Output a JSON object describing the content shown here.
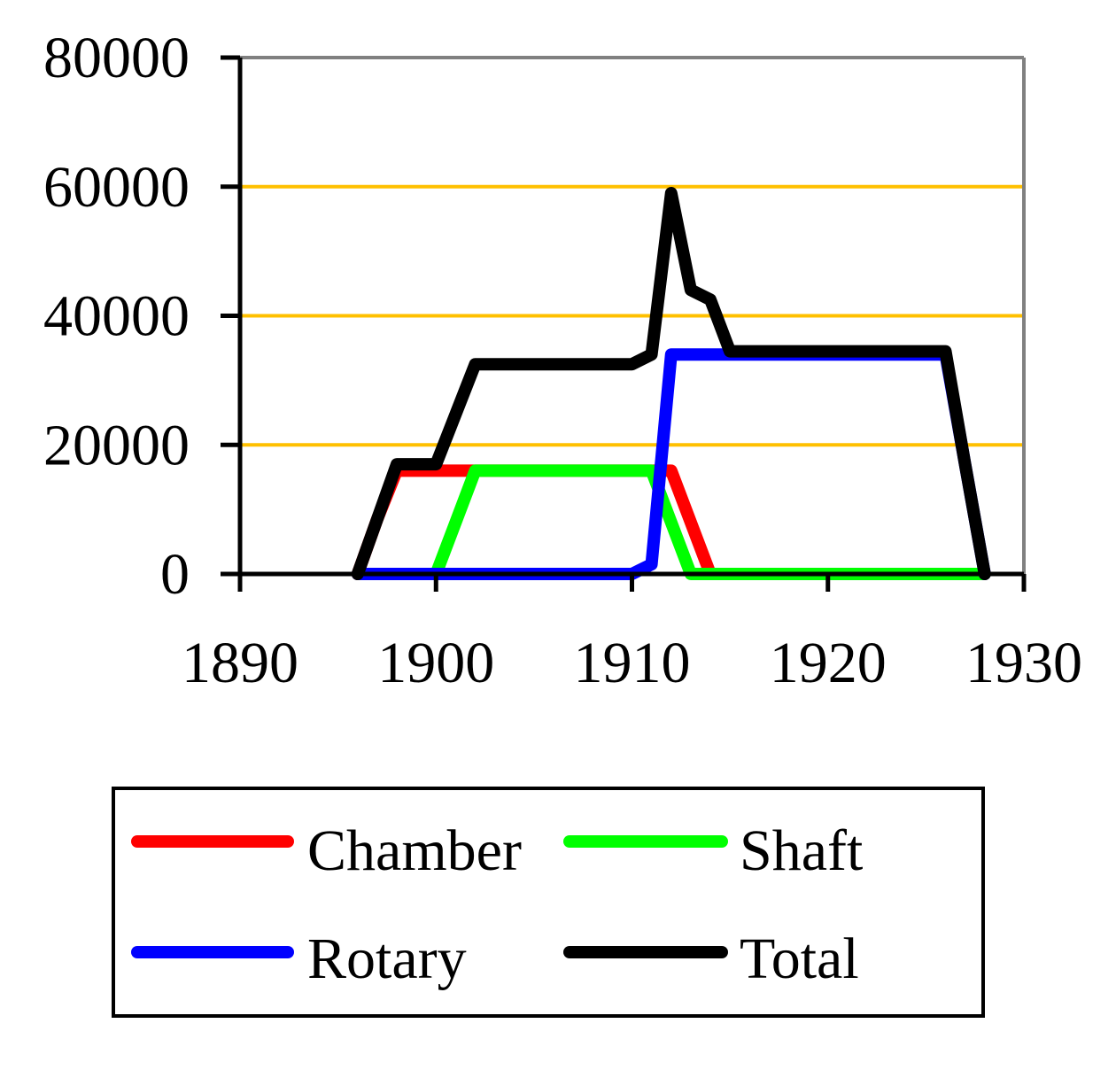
{
  "chart_data": {
    "type": "line",
    "title": "",
    "xlabel": "",
    "ylabel": "",
    "xlim": [
      1890,
      1930
    ],
    "ylim": [
      0,
      80000
    ],
    "x_ticks": [
      1890,
      1900,
      1910,
      1920,
      1930
    ],
    "x_tick_labels": [
      "1890",
      "1900",
      "1910",
      "1920",
      "1930"
    ],
    "y_ticks": [
      0,
      20000,
      40000,
      60000,
      80000
    ],
    "y_tick_labels": [
      "0",
      "20000",
      "40000",
      "60000",
      "80000"
    ],
    "grid": "horizontal",
    "grid_color": "#ffc000",
    "legend_position": "bottom",
    "series": [
      {
        "name": "Chamber",
        "color": "#ff0000",
        "points": [
          [
            1896,
            0
          ],
          [
            1897,
            8500
          ],
          [
            1898,
            16000
          ],
          [
            1912,
            16000
          ],
          [
            1914,
            0
          ],
          [
            1928,
            0
          ]
        ]
      },
      {
        "name": "Shaft",
        "color": "#00ff00",
        "points": [
          [
            1900,
            0
          ],
          [
            1902,
            16000
          ],
          [
            1911,
            16000
          ],
          [
            1913,
            0
          ],
          [
            1928,
            0
          ]
        ]
      },
      {
        "name": "Rotary",
        "color": "#0000ff",
        "points": [
          [
            1896,
            0
          ],
          [
            1910,
            0
          ],
          [
            1911,
            1500
          ],
          [
            1912,
            34000
          ],
          [
            1926,
            34000
          ],
          [
            1927,
            17000
          ],
          [
            1928,
            0
          ]
        ]
      },
      {
        "name": "Total",
        "color": "#000000",
        "points": [
          [
            1896,
            0
          ],
          [
            1897,
            8500
          ],
          [
            1898,
            17000
          ],
          [
            1900,
            17000
          ],
          [
            1902,
            32500
          ],
          [
            1910,
            32500
          ],
          [
            1911,
            34000
          ],
          [
            1912,
            59000
          ],
          [
            1913,
            44000
          ],
          [
            1914,
            42500
          ],
          [
            1915,
            34500
          ],
          [
            1926,
            34500
          ],
          [
            1927,
            17000
          ],
          [
            1928,
            0
          ]
        ]
      }
    ]
  }
}
